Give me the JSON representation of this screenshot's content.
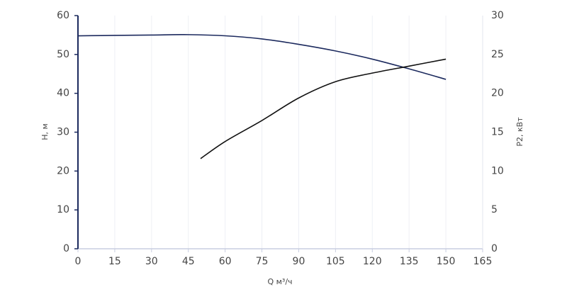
{
  "chart_data": {
    "type": "line",
    "x_label": "Q м³/ч",
    "y_label": "H, м",
    "y2_label": "P2, кВт",
    "xlim": [
      0,
      165
    ],
    "xticks": [
      0,
      15,
      30,
      45,
      60,
      75,
      90,
      105,
      120,
      135,
      150,
      165
    ],
    "ylim": [
      0,
      60
    ],
    "yticks": [
      0,
      10,
      20,
      30,
      40,
      50,
      60
    ],
    "y2lim": [
      0,
      30
    ],
    "y2ticks": [
      0,
      5,
      10,
      15,
      20,
      25,
      30
    ],
    "grid": true,
    "series": [
      {
        "color": "#1c2a5e",
        "axis": "y",
        "x": [
          0,
          15,
          30,
          45,
          60,
          75,
          90,
          105,
          120,
          135,
          150
        ],
        "values": [
          54.8,
          54.9,
          55.0,
          55.1,
          54.8,
          54.0,
          52.6,
          50.9,
          48.8,
          46.3,
          43.6
        ]
      },
      {
        "color": "#111111",
        "axis": "y2",
        "x": [
          50,
          60,
          75,
          90,
          105,
          120,
          135,
          150
        ],
        "values": [
          11.6,
          13.8,
          16.5,
          19.4,
          21.5,
          22.6,
          23.5,
          24.4
        ]
      }
    ]
  }
}
